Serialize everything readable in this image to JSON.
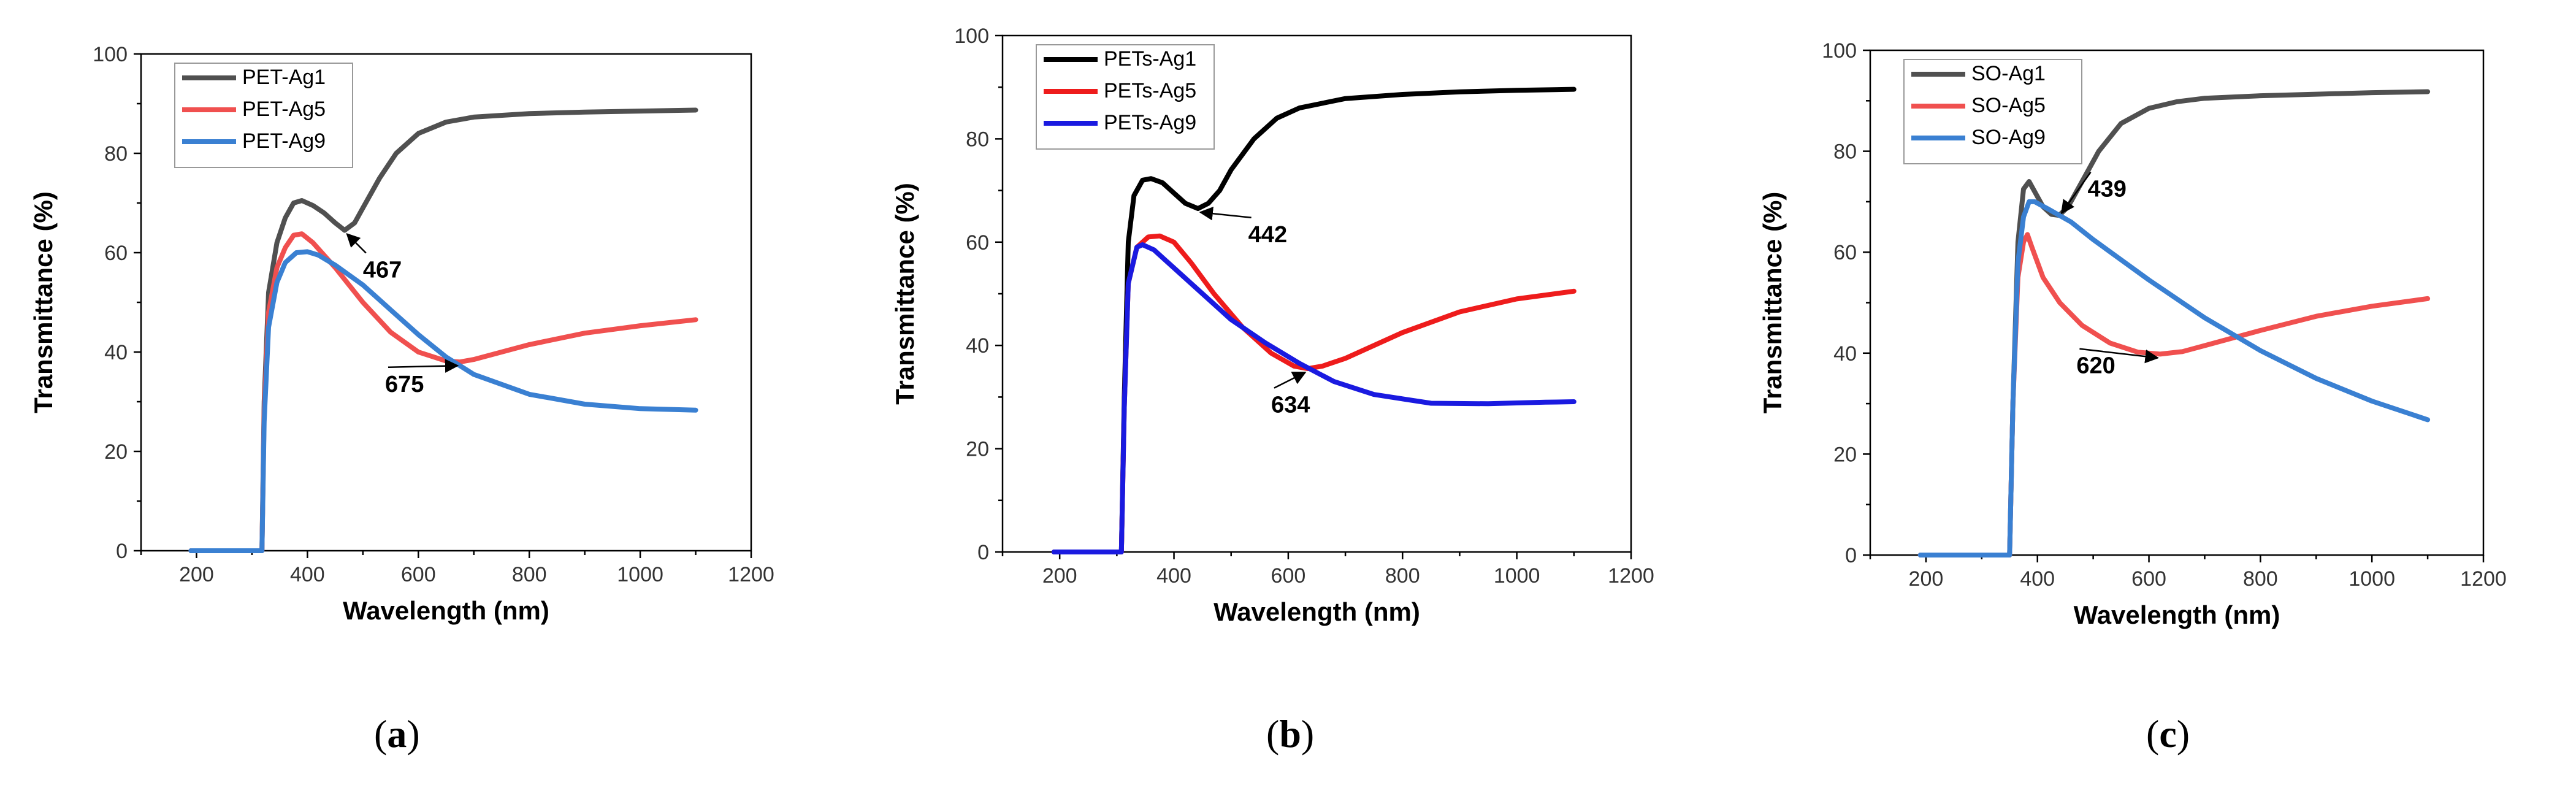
{
  "chart_data": [
    {
      "type": "line",
      "panel_label": "a",
      "xlabel": "Wavelength (nm)",
      "ylabel": "Transmittance (%)",
      "xlim": [
        100,
        1200
      ],
      "ylim": [
        0,
        100
      ],
      "xticks": [
        200,
        400,
        600,
        800,
        1000,
        1200
      ],
      "yticks": [
        0,
        20,
        40,
        60,
        80,
        100
      ],
      "grid": false,
      "legend_position": "top-left",
      "series": [
        {
          "name": "PET-Ag1",
          "color": "#505050",
          "points": [
            [
              190,
              0
            ],
            [
              300,
              0
            ],
            [
              318,
              0
            ],
            [
              322,
              30
            ],
            [
              330,
              52
            ],
            [
              345,
              62
            ],
            [
              360,
              67
            ],
            [
              375,
              70
            ],
            [
              390,
              70.5
            ],
            [
              410,
              69.5
            ],
            [
              430,
              68
            ],
            [
              450,
              66
            ],
            [
              467,
              64.5
            ],
            [
              485,
              66
            ],
            [
              500,
              69
            ],
            [
              530,
              75
            ],
            [
              560,
              80
            ],
            [
              600,
              84
            ],
            [
              650,
              86.3
            ],
            [
              700,
              87.3
            ],
            [
              800,
              88
            ],
            [
              900,
              88.3
            ],
            [
              1000,
              88.5
            ],
            [
              1100,
              88.7
            ]
          ]
        },
        {
          "name": "PET-Ag5",
          "color": "#f0504f",
          "points": [
            [
              190,
              0
            ],
            [
              300,
              0
            ],
            [
              318,
              0
            ],
            [
              322,
              28
            ],
            [
              330,
              48
            ],
            [
              345,
              57
            ],
            [
              360,
              61
            ],
            [
              375,
              63.5
            ],
            [
              390,
              63.8
            ],
            [
              410,
              62
            ],
            [
              450,
              57
            ],
            [
              500,
              50
            ],
            [
              550,
              44
            ],
            [
              600,
              40
            ],
            [
              650,
              38.2
            ],
            [
              675,
              38
            ],
            [
              700,
              38.5
            ],
            [
              800,
              41.5
            ],
            [
              900,
              43.8
            ],
            [
              1000,
              45.3
            ],
            [
              1100,
              46.5
            ]
          ]
        },
        {
          "name": "PET-Ag9",
          "color": "#3a80d2",
          "points": [
            [
              190,
              0
            ],
            [
              300,
              0
            ],
            [
              318,
              0
            ],
            [
              322,
              26
            ],
            [
              330,
              45
            ],
            [
              345,
              54
            ],
            [
              360,
              58
            ],
            [
              380,
              60
            ],
            [
              400,
              60.2
            ],
            [
              420,
              59.5
            ],
            [
              450,
              57.5
            ],
            [
              500,
              53.5
            ],
            [
              550,
              48.5
            ],
            [
              600,
              43.5
            ],
            [
              650,
              39
            ],
            [
              700,
              35.5
            ],
            [
              800,
              31.5
            ],
            [
              900,
              29.5
            ],
            [
              1000,
              28.6
            ],
            [
              1100,
              28.3
            ]
          ]
        }
      ],
      "annotations": [
        {
          "label": "467",
          "at": [
            467,
            64.5
          ],
          "text_at": [
            500,
            55
          ]
        },
        {
          "label": "675",
          "at": [
            675,
            38
          ],
          "text_at": [
            540,
            32
          ]
        }
      ]
    },
    {
      "type": "line",
      "panel_label": "b",
      "xlabel": "Wavelength (nm)",
      "ylabel": "Transmittance (%)",
      "xlim": [
        100,
        1200
      ],
      "ylim": [
        0,
        100
      ],
      "xticks": [
        200,
        400,
        600,
        800,
        1000,
        1200
      ],
      "yticks": [
        0,
        20,
        40,
        60,
        80,
        100
      ],
      "grid": false,
      "legend_position": "top-left",
      "series": [
        {
          "name": "PETs-Ag1",
          "color": "#000000",
          "points": [
            [
              190,
              0
            ],
            [
              300,
              0
            ],
            [
              308,
              0
            ],
            [
              313,
              30
            ],
            [
              320,
              60
            ],
            [
              330,
              69
            ],
            [
              345,
              72
            ],
            [
              360,
              72.3
            ],
            [
              380,
              71.5
            ],
            [
              400,
              69.5
            ],
            [
              420,
              67.5
            ],
            [
              442,
              66.5
            ],
            [
              460,
              67.5
            ],
            [
              480,
              70
            ],
            [
              500,
              74
            ],
            [
              540,
              80
            ],
            [
              580,
              84
            ],
            [
              620,
              86
            ],
            [
              700,
              87.8
            ],
            [
              800,
              88.6
            ],
            [
              900,
              89.1
            ],
            [
              1000,
              89.4
            ],
            [
              1100,
              89.6
            ]
          ]
        },
        {
          "name": "PETs-Ag5",
          "color": "#ee1c1c",
          "points": [
            [
              190,
              0
            ],
            [
              300,
              0
            ],
            [
              308,
              0
            ],
            [
              313,
              28
            ],
            [
              320,
              52
            ],
            [
              335,
              59
            ],
            [
              355,
              61
            ],
            [
              375,
              61.2
            ],
            [
              400,
              60
            ],
            [
              430,
              56
            ],
            [
              470,
              50
            ],
            [
              520,
              43.5
            ],
            [
              570,
              38.5
            ],
            [
              610,
              36
            ],
            [
              634,
              35.5
            ],
            [
              660,
              36
            ],
            [
              700,
              37.5
            ],
            [
              800,
              42.5
            ],
            [
              900,
              46.5
            ],
            [
              1000,
              49
            ],
            [
              1100,
              50.5
            ]
          ]
        },
        {
          "name": "PETs-Ag9",
          "color": "#1a1ae0",
          "points": [
            [
              190,
              0
            ],
            [
              300,
              0
            ],
            [
              308,
              0
            ],
            [
              313,
              28
            ],
            [
              320,
              52
            ],
            [
              335,
              59
            ],
            [
              345,
              59.5
            ],
            [
              365,
              58.5
            ],
            [
              400,
              55
            ],
            [
              450,
              50
            ],
            [
              500,
              45
            ],
            [
              560,
              40.5
            ],
            [
              620,
              36.5
            ],
            [
              680,
              33
            ],
            [
              750,
              30.5
            ],
            [
              850,
              28.8
            ],
            [
              950,
              28.7
            ],
            [
              1050,
              29
            ],
            [
              1100,
              29.1
            ]
          ]
        }
      ],
      "annotations": [
        {
          "label": "442",
          "at": [
            442,
            66.5
          ],
          "text_at": [
            530,
            60
          ]
        },
        {
          "label": "634",
          "at": [
            634,
            35.5
          ],
          "text_at": [
            570,
            27
          ]
        }
      ]
    },
    {
      "type": "line",
      "panel_label": "c",
      "xlabel": "Wavelength (nm)",
      "ylabel": "Transmittance (%)",
      "xlim": [
        100,
        1200
      ],
      "ylim": [
        0,
        100
      ],
      "xticks": [
        200,
        400,
        600,
        800,
        1000,
        1200
      ],
      "yticks": [
        0,
        20,
        40,
        60,
        80,
        100
      ],
      "grid": false,
      "legend_position": "top-left",
      "series": [
        {
          "name": "SO-Ag1",
          "color": "#505050",
          "points": [
            [
              190,
              0
            ],
            [
              340,
              0
            ],
            [
              350,
              0
            ],
            [
              356,
              30
            ],
            [
              365,
              62
            ],
            [
              375,
              72.5
            ],
            [
              385,
              74
            ],
            [
              395,
              72
            ],
            [
              410,
              69
            ],
            [
              425,
              67.5
            ],
            [
              439,
              67.3
            ],
            [
              455,
              69
            ],
            [
              480,
              74
            ],
            [
              510,
              80
            ],
            [
              550,
              85.5
            ],
            [
              600,
              88.5
            ],
            [
              650,
              89.8
            ],
            [
              700,
              90.5
            ],
            [
              800,
              91
            ],
            [
              900,
              91.3
            ],
            [
              1000,
              91.6
            ],
            [
              1100,
              91.8
            ]
          ]
        },
        {
          "name": "SO-Ag5",
          "color": "#f0504f",
          "points": [
            [
              190,
              0
            ],
            [
              340,
              0
            ],
            [
              350,
              0
            ],
            [
              356,
              30
            ],
            [
              365,
              55
            ],
            [
              375,
              62
            ],
            [
              382,
              63.5
            ],
            [
              390,
              61
            ],
            [
              410,
              55
            ],
            [
              440,
              50
            ],
            [
              480,
              45.5
            ],
            [
              530,
              42
            ],
            [
              580,
              40.2
            ],
            [
              620,
              39.8
            ],
            [
              660,
              40.3
            ],
            [
              700,
              41.5
            ],
            [
              800,
              44.5
            ],
            [
              900,
              47.3
            ],
            [
              1000,
              49.3
            ],
            [
              1100,
              50.8
            ]
          ]
        },
        {
          "name": "SO-Ag9",
          "color": "#3a80d2",
          "points": [
            [
              190,
              0
            ],
            [
              340,
              0
            ],
            [
              350,
              0
            ],
            [
              356,
              30
            ],
            [
              365,
              58
            ],
            [
              375,
              67
            ],
            [
              385,
              70
            ],
            [
              395,
              70
            ],
            [
              420,
              68.5
            ],
            [
              460,
              66
            ],
            [
              500,
              62.5
            ],
            [
              600,
              54.5
            ],
            [
              700,
              47
            ],
            [
              800,
              40.5
            ],
            [
              900,
              35
            ],
            [
              1000,
              30.5
            ],
            [
              1100,
              26.8
            ]
          ]
        }
      ],
      "annotations": [
        {
          "label": "439",
          "at": [
            439,
            68.5
          ],
          "text_at": [
            490,
            71
          ]
        },
        {
          "label": "620",
          "at": [
            620,
            39.8
          ],
          "text_at": [
            470,
            36
          ]
        }
      ]
    }
  ],
  "captions": [
    {
      "open": "(",
      "letter": "a",
      "close": ")"
    },
    {
      "open": "(",
      "letter": "b",
      "close": ")"
    },
    {
      "open": "(",
      "letter": "c",
      "close": ")"
    }
  ]
}
